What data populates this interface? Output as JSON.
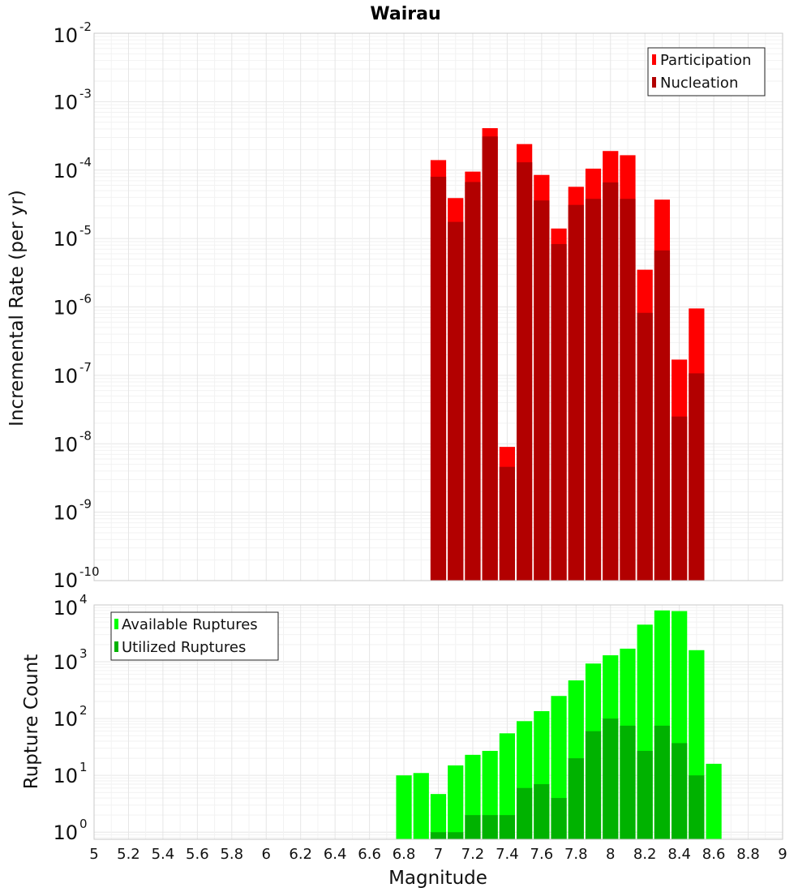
{
  "chart_data": [
    {
      "type": "bar",
      "title": "Wairau",
      "ylabel": "Incremental Rate (per yr)",
      "yscale": "log",
      "ylim": [
        1e-10,
        0.01
      ],
      "y_tick_exponents": [
        -10,
        -9,
        -8,
        -7,
        -6,
        -5,
        -4,
        -3,
        -2
      ],
      "legend_placement": "top-right",
      "x": [
        7.0,
        7.1,
        7.2,
        7.3,
        7.4,
        7.5,
        7.6,
        7.7,
        7.8,
        7.9,
        8.0,
        8.1,
        8.2,
        8.3,
        8.4,
        8.5
      ],
      "series": [
        {
          "name": "Participation",
          "color": "#ff0000",
          "values": [
            0.00014,
            3.9e-05,
            9.5e-05,
            0.00041,
            9e-09,
            0.00024,
            8.5e-05,
            1.4e-05,
            5.7e-05,
            0.000105,
            0.00019,
            0.000165,
            3.5e-06,
            3.7e-05,
            1.7e-07,
            9.5e-07
          ]
        },
        {
          "name": "Nucleation",
          "color": "#b20000",
          "values": [
            8e-05,
            1.75e-05,
            6.7e-05,
            0.00031,
            4.6e-09,
            0.00013,
            3.6e-05,
            8.3e-06,
            3.1e-05,
            3.8e-05,
            6.6e-05,
            3.8e-05,
            8.2e-07,
            6.7e-06,
            2.5e-08,
            1.07e-07
          ]
        }
      ]
    },
    {
      "type": "bar",
      "xlabel": "Magnitude",
      "ylabel": "Rupture Count",
      "yscale": "log",
      "ylim": [
        0.75,
        10000
      ],
      "y_tick_exponents": [
        0,
        1,
        2,
        3,
        4
      ],
      "legend_placement": "top-left",
      "x": [
        6.8,
        6.9,
        7.0,
        7.1,
        7.2,
        7.3,
        7.4,
        7.5,
        7.6,
        7.7,
        7.8,
        7.9,
        8.0,
        8.1,
        8.2,
        8.3,
        8.4,
        8.5,
        8.6
      ],
      "xlim": [
        5,
        9
      ],
      "x_ticks": [
        "5",
        "5.2",
        "5.4",
        "5.6",
        "5.8",
        "6",
        "6.2",
        "6.4",
        "6.6",
        "6.8",
        "7",
        "7.2",
        "7.4",
        "7.6",
        "7.8",
        "8",
        "8.2",
        "8.4",
        "8.6",
        "8.8",
        "9"
      ],
      "series": [
        {
          "name": "Available Ruptures",
          "color": "#00ff00",
          "values": [
            10,
            11,
            4.7,
            15,
            23,
            27,
            55,
            90,
            135,
            250,
            470,
            930,
            1300,
            1700,
            4500,
            8000,
            7800,
            1600,
            16
          ]
        },
        {
          "name": "Utilized Ruptures",
          "color": "#00b200",
          "values": [
            0,
            0,
            1,
            1,
            2,
            2,
            2,
            6,
            7,
            4,
            20,
            60,
            100,
            75,
            27,
            75,
            37,
            10,
            0
          ]
        }
      ]
    }
  ]
}
